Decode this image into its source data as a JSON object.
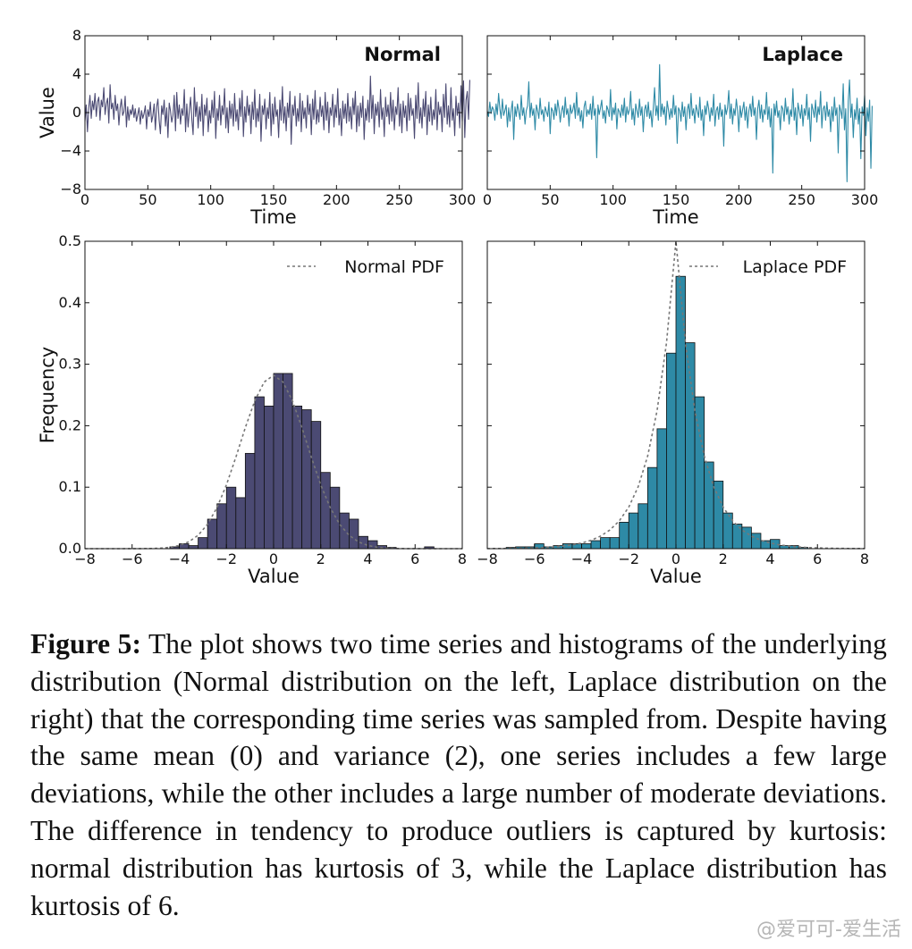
{
  "caption": {
    "label": "Figure 5:",
    "text": "The plot shows two time series and histograms of the underlying distribution (Normal distribution on the left, Laplace distribution on the right) that the corresponding time series was sampled from. Despite having the same mean (0) and variance (2), one series includes a few large deviations, while the other includes a large number of moderate deviations. The difference in tendency to produce outliers is captured by kurtosis: normal distribution has kurtosis of 3, while the Laplace distribution has kurtosis of 6."
  },
  "watermark": "@爱可可-爱生活",
  "colors": {
    "normal": "#4b4a73",
    "laplace": "#2e8aa6",
    "pdf": "#777777"
  },
  "chart_data": [
    {
      "type": "line",
      "title": "Normal",
      "xlabel": "Time",
      "ylabel": "Value",
      "xlim": [
        0,
        300
      ],
      "ylim": [
        -8,
        8
      ],
      "xticks": [
        "0",
        "50",
        "100",
        "150",
        "200",
        "250",
        "300"
      ],
      "yticks": [
        "8",
        "4",
        "0",
        "−4",
        "−8"
      ],
      "series": [
        {
          "x_start": 0,
          "x_step": 1,
          "values": [
            -0.9,
            0.8,
            -2.0,
            0.5,
            1.8,
            -0.6,
            1.2,
            0.3,
            2.0,
            -0.4,
            1.1,
            1.6,
            -0.8,
            1.3,
            0.6,
            2.6,
            -0.2,
            0.9,
            1.5,
            -1.1,
            2.9,
            0.4,
            1.0,
            -0.7,
            1.8,
            0.2,
            0.9,
            -1.3,
            0.5,
            1.4,
            -0.3,
            0.1,
            1.7,
            -1.5,
            0.6,
            -0.8,
            0.3,
            -0.2,
            0.8,
            -0.5,
            0.4,
            -0.9,
            -0.2,
            0.5,
            -1.2,
            0.2,
            -0.6,
            -0.1,
            0.7,
            -1.7,
            0.3,
            -0.4,
            1.1,
            -1.0,
            -0.3,
            0.9,
            -1.8,
            0.6,
            1.4,
            -0.8,
            -2.2,
            0.7,
            -0.2,
            1.3,
            -1.4,
            0.5,
            -2.6,
            1.0,
            0.2,
            -1.0,
            -0.3,
            1.8,
            -1.9,
            2.1,
            -0.6,
            0.8,
            -1.2,
            0.4,
            -0.3,
            2.4,
            -2.0,
            0.9,
            -1.5,
            0.2,
            1.6,
            -0.7,
            -2.3,
            2.6,
            -0.4,
            1.1,
            -1.6,
            0.6,
            -0.9,
            1.9,
            -2.4,
            0.8,
            -0.3,
            1.5,
            -2.0,
            0.2,
            -1.1,
            1.3,
            -0.5,
            2.2,
            -2.7,
            0.4,
            -0.8,
            1.8,
            -1.3,
            0.7,
            -0.2,
            2.5,
            -1.6,
            0.5,
            -2.1,
            1.2,
            -0.6,
            0.9,
            -1.4,
            2.0,
            -0.9,
            0.3,
            -1.8,
            1.5,
            -0.4,
            2.3,
            -2.5,
            0.6,
            -1.0,
            1.7,
            -0.3,
            0.8,
            -2.2,
            1.1,
            -0.7,
            2.4,
            -1.5,
            0.4,
            -0.9,
            1.9,
            -3.0,
            0.7,
            -0.2,
            1.4,
            -1.7,
            0.5,
            -0.6,
            2.1,
            -2.4,
            0.9,
            -1.2,
            1.6,
            -0.4,
            0.3,
            -2.6,
            1.3,
            -0.8,
            2.7,
            -1.1,
            0.6,
            -1.9,
            1.0,
            -0.5,
            2.2,
            -3.3,
            0.8,
            -0.3,
            1.7,
            -1.4,
            0.4,
            -0.9,
            2.0,
            -2.0,
            1.2,
            -0.6,
            0.5,
            -1.6,
            1.8,
            -0.2,
            0.9,
            -2.3,
            1.4,
            -0.7,
            2.3,
            -1.2,
            0.3,
            -1.0,
            1.6,
            -0.4,
            0.7,
            -1.8,
            2.1,
            -0.8,
            1.1,
            -2.1,
            0.5,
            -0.3,
            1.9,
            -1.5,
            0.8,
            -0.5,
            2.5,
            -1.3,
            0.4,
            -2.4,
            1.2,
            -0.6,
            0.9,
            -1.1,
            2.0,
            -0.9,
            0.6,
            -1.7,
            1.5,
            -0.2,
            2.2,
            -2.0,
            0.7,
            -1.4,
            1.0,
            -0.5,
            1.7,
            -2.8,
            0.4,
            -0.8,
            1.3,
            -1.0,
            3.8,
            -0.6,
            1.8,
            -2.2,
            0.9,
            -0.3,
            1.1,
            -1.5,
            2.4,
            -0.7,
            0.5,
            -2.5,
            1.6,
            -0.4,
            0.8,
            -1.2,
            2.1,
            -0.9,
            1.3,
            -1.8,
            0.6,
            -0.2,
            2.6,
            -1.4,
            0.9,
            -2.1,
            1.2,
            -0.5,
            0.7,
            -1.9,
            2.0,
            -0.8,
            1.5,
            -0.3,
            0.4,
            -2.7,
            1.8,
            -0.6,
            3.1,
            -1.1,
            0.5,
            -1.6,
            1.4,
            -0.4,
            2.2,
            -2.3,
            0.8,
            -0.9,
            1.6,
            -1.3,
            0.3,
            -0.7,
            2.4,
            -1.8,
            1.1,
            -0.2,
            0.6,
            -2.0,
            1.9,
            -0.5,
            3.0,
            -1.2,
            0.7,
            -1.5,
            2.6,
            -0.8,
            0.4,
            -2.4,
            1.7,
            -0.3,
            1.0,
            -1.6,
            2.8,
            -0.9,
            3.3,
            -2.6,
            1.3,
            2.2,
            -0.7,
            3.4
          ]
        }
      ]
    },
    {
      "type": "line",
      "title": "Laplace",
      "xlabel": "Time",
      "ylabel": "",
      "xlim": [
        0,
        300
      ],
      "ylim": [
        -8,
        8
      ],
      "xticks": [
        "0",
        "50",
        "100",
        "150",
        "200",
        "250",
        "300"
      ],
      "yticks": [],
      "series": [
        {
          "x_start": 0,
          "x_step": 1,
          "values": [
            0.2,
            -0.4,
            1.1,
            -0.1,
            0.6,
            0.3,
            -0.8,
            0.9,
            -0.2,
            2.0,
            0.4,
            -0.6,
            1.4,
            -0.3,
            0.2,
            0.8,
            -1.5,
            0.5,
            -0.9,
            0.3,
            1.2,
            -2.8,
            0.6,
            -0.4,
            0.9,
            0.1,
            -0.7,
            1.8,
            -0.3,
            0.5,
            -1.2,
            0.2,
            0.7,
            3.2,
            -0.5,
            1.0,
            -0.3,
            0.4,
            -1.8,
            0.8,
            0.2,
            -0.6,
            1.5,
            -0.2,
            0.3,
            -0.9,
            0.6,
            0.1,
            -0.4,
            1.1,
            -2.2,
            0.5,
            0.2,
            -0.7,
            0.9,
            -0.3,
            1.3,
            0.4,
            -1.0,
            0.2,
            0.7,
            -0.5,
            1.6,
            -0.2,
            0.4,
            -1.4,
            0.8,
            -0.1,
            0.3,
            1.0,
            -0.6,
            2.1,
            -0.3,
            0.5,
            -0.9,
            0.2,
            -1.6,
            0.6,
            1.2,
            -0.4,
            0.3,
            -0.2,
            0.9,
            -0.7,
            1.7,
            -0.3,
            0.4,
            -4.7,
            0.8,
            -0.2,
            0.5,
            1.3,
            -0.6,
            0.2,
            -1.1,
            0.7,
            0.3,
            -0.4,
            2.4,
            -0.8,
            0.5,
            -0.2,
            1.0,
            -1.7,
            0.4,
            0.1,
            -0.5,
            0.8,
            -0.3,
            1.5,
            -1.0,
            0.6,
            -0.2,
            0.3,
            2.2,
            -0.7,
            0.4,
            -1.3,
            0.9,
            0.2,
            -0.5,
            1.4,
            -0.3,
            0.6,
            -2.0,
            0.3,
            0.8,
            -0.4,
            1.1,
            -0.6,
            0.2,
            -1.5,
            0.5,
            2.6,
            -0.3,
            0.7,
            -0.8,
            5.0,
            -0.4,
            0.9,
            -0.2,
            0.6,
            -1.3,
            1.2,
            0.3,
            -0.7,
            0.4,
            -0.5,
            1.8,
            -0.2,
            0.7,
            -3.2,
            0.5,
            0.2,
            -0.9,
            1.1,
            -0.4,
            0.6,
            -1.8,
            0.3,
            0.9,
            -0.6,
            2.0,
            -0.3,
            0.4,
            -1.1,
            0.8,
            0.2,
            -0.5,
            1.6,
            -0.8,
            0.3,
            -2.4,
            0.7,
            -0.2,
            1.2,
            0.4,
            -0.9,
            0.5,
            -0.3,
            1.9,
            -1.4,
            0.2,
            0.6,
            -0.7,
            1.0,
            -0.4,
            0.3,
            -3.5,
            0.8,
            -0.2,
            0.5,
            2.3,
            -0.6,
            0.9,
            -1.2,
            0.4,
            -0.3,
            1.4,
            0.2,
            -2.0,
            0.7,
            -0.5,
            0.3,
            1.1,
            -0.8,
            0.6,
            -1.6,
            0.2,
            0.9,
            -0.4,
            1.7,
            -0.3,
            0.5,
            -2.8,
            0.4,
            1.3,
            -0.6,
            0.8,
            -1.0,
            0.3,
            -0.2,
            2.1,
            -0.7,
            0.6,
            -1.5,
            0.4,
            -6.3,
            0.9,
            -0.3,
            1.2,
            -0.5,
            0.2,
            -1.8,
            0.7,
            0.4,
            -0.9,
            1.5,
            -0.2,
            0.6,
            -1.2,
            0.3,
            -0.4,
            2.5,
            -0.8,
            0.5,
            -2.3,
            1.0,
            0.2,
            -0.6,
            0.8,
            -1.4,
            0.4,
            -0.3,
            1.9,
            -0.7,
            0.5,
            -3.0,
            0.9,
            0.3,
            -0.5,
            1.3,
            -1.0,
            0.6,
            -0.2,
            2.2,
            -1.6,
            0.4,
            0.7,
            -0.8,
            1.1,
            -0.4,
            0.3,
            -2.0,
            0.6,
            -0.9,
            1.6,
            -0.3,
            0.5,
            -4.2,
            0.8,
            0.2,
            -0.6,
            3.0,
            -1.8,
            0.4,
            -7.2,
            1.2,
            3.4,
            -0.5,
            0.9,
            -2.6,
            0.3,
            -0.7,
            1.5,
            -1.2,
            0.4,
            -4.8,
            0.6,
            -0.3,
            1.8,
            -2.4,
            0.5,
            -0.9,
            1.3,
            -5.8,
            0.7
          ]
        }
      ]
    },
    {
      "type": "bar",
      "title": "",
      "xlabel": "Value",
      "ylabel": "Frequency",
      "xlim": [
        -8,
        8
      ],
      "ylim": [
        0,
        0.5
      ],
      "xticks": [
        "−8",
        "−6",
        "−4",
        "−2",
        "0",
        "2",
        "4",
        "6",
        "8"
      ],
      "yticks": [
        "0.0",
        "0.1",
        "0.2",
        "0.3",
        "0.4",
        "0.5"
      ],
      "legend": {
        "label": "Normal PDF",
        "placement": "top-right"
      },
      "bin_width": 0.4,
      "bins": [
        {
          "x0": -4.4,
          "y": 0.003
        },
        {
          "x0": -4.0,
          "y": 0.008
        },
        {
          "x0": -3.6,
          "y": 0.005
        },
        {
          "x0": -3.2,
          "y": 0.018
        },
        {
          "x0": -2.8,
          "y": 0.048
        },
        {
          "x0": -2.4,
          "y": 0.073
        },
        {
          "x0": -2.0,
          "y": 0.1
        },
        {
          "x0": -1.6,
          "y": 0.083
        },
        {
          "x0": -1.2,
          "y": 0.155
        },
        {
          "x0": -0.8,
          "y": 0.247
        },
        {
          "x0": -0.4,
          "y": 0.232
        },
        {
          "x0": 0.0,
          "y": 0.285
        },
        {
          "x0": 0.4,
          "y": 0.285
        },
        {
          "x0": 0.8,
          "y": 0.232
        },
        {
          "x0": 1.2,
          "y": 0.226
        },
        {
          "x0": 1.6,
          "y": 0.207
        },
        {
          "x0": 2.0,
          "y": 0.124
        },
        {
          "x0": 2.4,
          "y": 0.1
        },
        {
          "x0": 2.8,
          "y": 0.058
        },
        {
          "x0": 3.2,
          "y": 0.048
        },
        {
          "x0": 3.6,
          "y": 0.02
        },
        {
          "x0": 4.0,
          "y": 0.013
        },
        {
          "x0": 4.4,
          "y": 0.005
        },
        {
          "x0": 4.8,
          "y": 0.002
        },
        {
          "x0": 6.4,
          "y": 0.003
        }
      ],
      "pdf": {
        "dist": "normal",
        "mean": 0,
        "variance": 2
      }
    },
    {
      "type": "bar",
      "title": "",
      "xlabel": "Value",
      "ylabel": "",
      "xlim": [
        -8,
        8
      ],
      "ylim": [
        0,
        0.5
      ],
      "xticks": [
        "−8",
        "−6",
        "−4",
        "−2",
        "0",
        "2",
        "4",
        "6",
        "8"
      ],
      "yticks": [],
      "legend": {
        "label": "Laplace PDF",
        "placement": "top-right"
      },
      "bin_width": 0.4,
      "bins": [
        {
          "x0": -7.2,
          "y": 0.002
        },
        {
          "x0": -6.8,
          "y": 0.003
        },
        {
          "x0": -6.4,
          "y": 0.003
        },
        {
          "x0": -6.0,
          "y": 0.008
        },
        {
          "x0": -5.6,
          "y": 0.003
        },
        {
          "x0": -5.2,
          "y": 0.005
        },
        {
          "x0": -4.8,
          "y": 0.008
        },
        {
          "x0": -4.4,
          "y": 0.008
        },
        {
          "x0": -4.0,
          "y": 0.008
        },
        {
          "x0": -3.6,
          "y": 0.013
        },
        {
          "x0": -3.2,
          "y": 0.018
        },
        {
          "x0": -2.8,
          "y": 0.018
        },
        {
          "x0": -2.4,
          "y": 0.043
        },
        {
          "x0": -2.0,
          "y": 0.058
        },
        {
          "x0": -1.6,
          "y": 0.073
        },
        {
          "x0": -1.2,
          "y": 0.132
        },
        {
          "x0": -0.8,
          "y": 0.195
        },
        {
          "x0": -0.4,
          "y": 0.318
        },
        {
          "x0": 0.0,
          "y": 0.443
        },
        {
          "x0": 0.4,
          "y": 0.335
        },
        {
          "x0": 0.8,
          "y": 0.247
        },
        {
          "x0": 1.2,
          "y": 0.141
        },
        {
          "x0": 1.6,
          "y": 0.11
        },
        {
          "x0": 2.0,
          "y": 0.058
        },
        {
          "x0": 2.4,
          "y": 0.04
        },
        {
          "x0": 2.8,
          "y": 0.035
        },
        {
          "x0": 3.2,
          "y": 0.025
        },
        {
          "x0": 3.6,
          "y": 0.013
        },
        {
          "x0": 4.0,
          "y": 0.015
        },
        {
          "x0": 4.4,
          "y": 0.005
        },
        {
          "x0": 4.8,
          "y": 0.005
        },
        {
          "x0": 5.2,
          "y": 0.002
        }
      ],
      "pdf": {
        "dist": "laplace",
        "mean": 0,
        "variance": 2
      }
    }
  ]
}
